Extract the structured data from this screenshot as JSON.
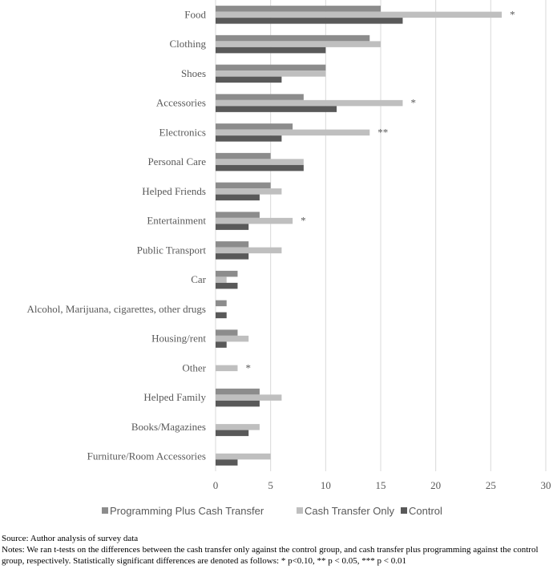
{
  "chart_data": {
    "type": "bar",
    "orientation": "horizontal",
    "categories": [
      "Food",
      "Clothing",
      "Shoes",
      "Accessories",
      "Electronics",
      "Personal Care",
      "Helped Friends",
      "Entertainment",
      "Public Transport",
      "Car",
      "Alcohol, Marijuana, cigarettes, other drugs",
      "Housing/rent",
      "Other",
      "Helped Family",
      "Books/Magazines",
      "Furniture/Room Accessories"
    ],
    "series": [
      {
        "name": "Programming Plus Cash Transfer",
        "color": "#8c8c8c",
        "values": [
          15,
          14,
          10,
          8,
          7,
          5,
          5,
          4,
          3,
          2,
          1,
          2,
          0,
          4,
          0,
          0
        ]
      },
      {
        "name": "Cash Transfer Only",
        "color": "#bfbfbf",
        "values": [
          26,
          15,
          10,
          17,
          14,
          8,
          6,
          7,
          6,
          1,
          0,
          3,
          2,
          6,
          4,
          5
        ]
      },
      {
        "name": "Control",
        "color": "#595959",
        "values": [
          17,
          10,
          6,
          11,
          6,
          8,
          4,
          3,
          3,
          2,
          1,
          1,
          0,
          4,
          3,
          2
        ]
      }
    ],
    "significance": [
      "*",
      "",
      "",
      "*",
      "**",
      "",
      "",
      "*",
      "",
      "",
      "",
      "",
      "*",
      "",
      "",
      ""
    ],
    "xlim": [
      0,
      30
    ],
    "xticks": [
      "0",
      "5",
      "10",
      "15",
      "20",
      "25",
      "30"
    ],
    "grid": true,
    "legend_position": "bottom"
  },
  "notes": {
    "source": "Source: Author analysis of survey data",
    "text": "Notes: We ran t-tests on the differences between the cash transfer only against the control group, and cash transfer plus programming against the control group, respectively. Statistically significant differences are denoted as follows: * p<0.10, ** p < 0.05, *** p < 0.01"
  }
}
